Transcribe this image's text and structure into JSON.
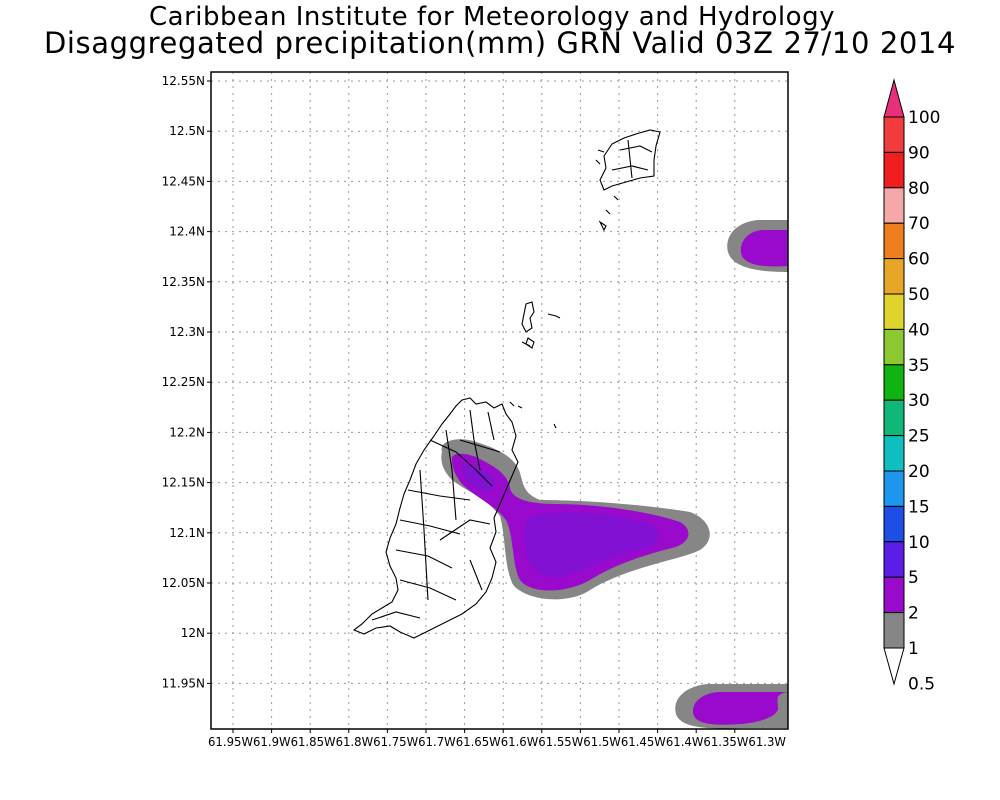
{
  "header": {
    "title_line1": "Caribbean Institute for Meteorology and Hydrology",
    "title_line2": "Disaggregated precipitation(mm) GRN Valid 03Z 27/10 2014"
  },
  "map": {
    "lat_labels": [
      "12.55N",
      "12.5N",
      "12.45N",
      "12.4N",
      "12.35N",
      "12.3N",
      "12.25N",
      "12.2N",
      "12.15N",
      "12.1N",
      "12.05N",
      "12N",
      "11.95N"
    ],
    "lon_labels": [
      "61.95W",
      "61.9W",
      "61.85W",
      "61.8W",
      "61.75W",
      "61.7W",
      "61.65W",
      "61.6W",
      "61.55W",
      "61.5W",
      "61.45W",
      "61.4W",
      "61.35W",
      "61.3W"
    ]
  },
  "colorbar": {
    "levels": [
      "100",
      "90",
      "80",
      "70",
      "60",
      "50",
      "40",
      "35",
      "30",
      "25",
      "20",
      "15",
      "10",
      "5",
      "2",
      "1",
      "0.5"
    ],
    "colors": [
      "#e8307a",
      "#f03c3c",
      "#f01e1e",
      "#f5a8a8",
      "#ee7e1e",
      "#e8a628",
      "#e0d42c",
      "#8cc832",
      "#10b410",
      "#10b878",
      "#10bec0",
      "#1e96ee",
      "#1e4ee6",
      "#5a1ee6",
      "#9a0acc",
      "#868686"
    ]
  }
}
